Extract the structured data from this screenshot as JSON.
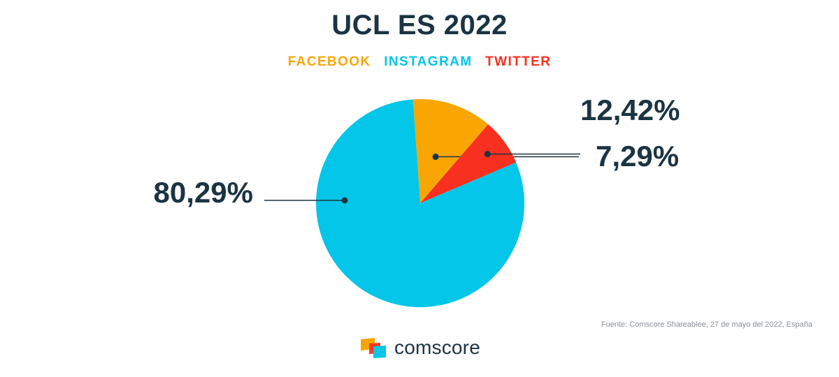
{
  "title": "UCL ES 2022",
  "legend": [
    {
      "label": "FACEBOOK",
      "color": "#f9a602"
    },
    {
      "label": "INSTAGRAM",
      "color": "#03c6e8"
    },
    {
      "label": "TWITTER",
      "color": "#f8301f"
    }
  ],
  "chart_data": {
    "type": "pie",
    "title": "UCL ES 2022",
    "categories": [
      "FACEBOOK",
      "TWITTER",
      "INSTAGRAM"
    ],
    "values": [
      12.42,
      7.29,
      80.29
    ],
    "labels": [
      "12,42%",
      "7,29%",
      "80,29%"
    ],
    "colors": [
      "#f9a602",
      "#f8301f",
      "#03c6e8"
    ],
    "legend_position": "top"
  },
  "source": "Fuente: Comscore Shareablee, 27 de mayo del 2022, España",
  "brand": {
    "name": "comscore",
    "logo_icon": "comscore-logo-icon",
    "logo_colors": [
      "#f9a602",
      "#f8301f",
      "#03c6e8"
    ]
  },
  "colors": {
    "text_dark": "#1b3443",
    "source_text": "#8a8f95"
  }
}
